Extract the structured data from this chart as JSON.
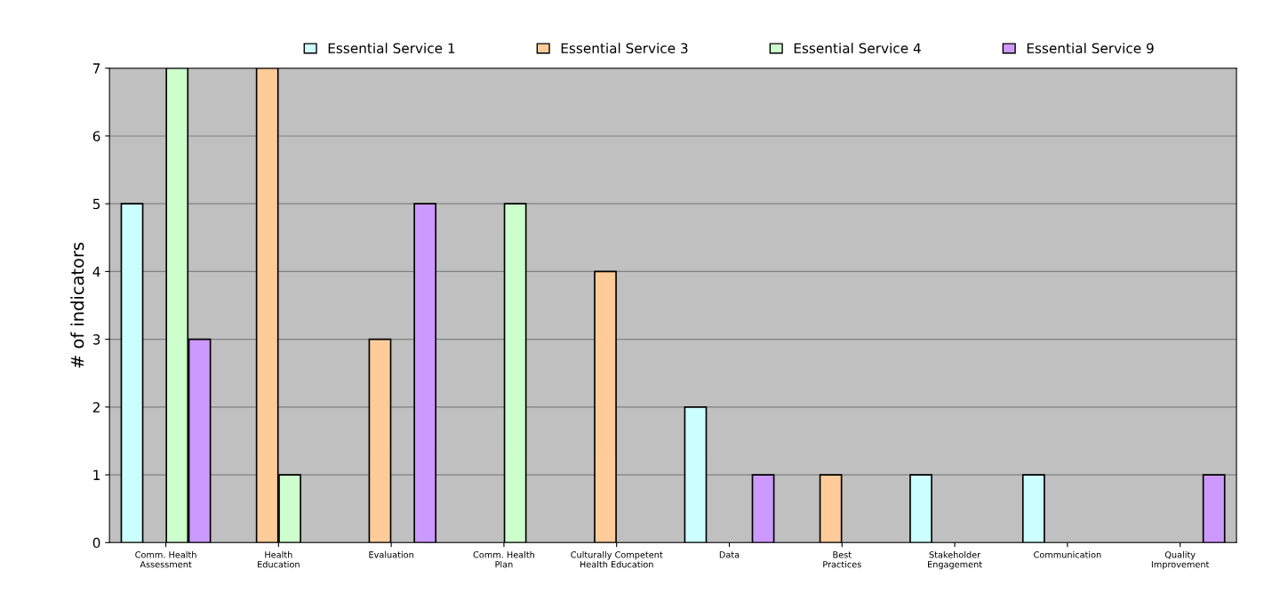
{
  "chart_data": {
    "type": "bar",
    "ylabel": "# of indicators",
    "categories": [
      "Comm. Health\nAssessment",
      "Health\nEducation",
      "Evaluation",
      "Comm. Health\nPlan",
      "Culturally Competent\nHealth Education",
      "Data",
      "Best\nPractices",
      "Stakeholder\nEngagement",
      "Communication",
      "Quality\nImprovement"
    ],
    "series": [
      {
        "name": "Essential Service 1",
        "color": "#ccffff",
        "values": [
          5,
          null,
          null,
          null,
          null,
          2,
          null,
          1,
          1,
          null
        ]
      },
      {
        "name": "Essential Service 3",
        "color": "#ffcc99",
        "values": [
          null,
          7,
          3,
          null,
          4,
          null,
          1,
          null,
          null,
          null
        ]
      },
      {
        "name": "Essential Service 4",
        "color": "#ccffcc",
        "values": [
          7,
          1,
          null,
          5,
          null,
          null,
          null,
          null,
          null,
          null
        ]
      },
      {
        "name": "Essential Service 9",
        "color": "#cc99ff",
        "values": [
          3,
          null,
          5,
          null,
          null,
          1,
          null,
          null,
          null,
          1
        ]
      }
    ],
    "ylim": [
      0,
      7
    ],
    "yticks": [
      0,
      1,
      2,
      3,
      4,
      5,
      6,
      7
    ],
    "grid": "y",
    "legend": "top"
  }
}
